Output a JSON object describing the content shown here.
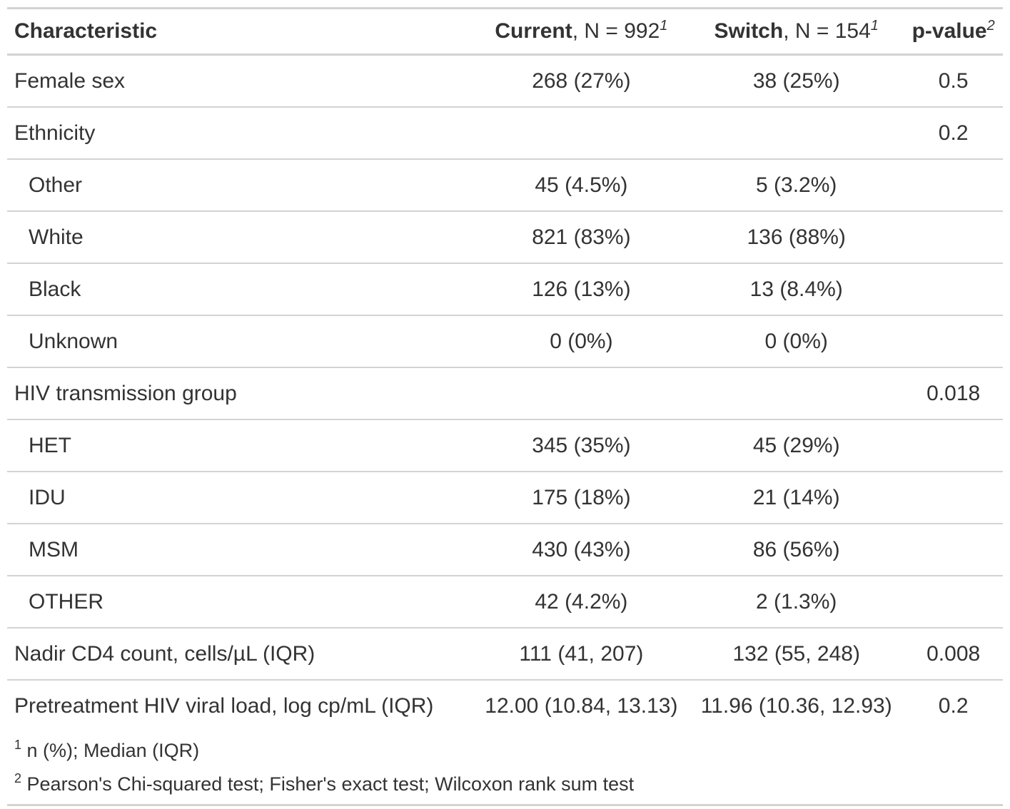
{
  "header": {
    "characteristic": "Characteristic",
    "current": {
      "bold": "Current",
      "rest": ", N = 992",
      "sup": "1"
    },
    "switch": {
      "bold": "Switch",
      "rest": ", N = 154",
      "sup": "1"
    },
    "pvalue": {
      "bold": "p-value",
      "sup": "2"
    }
  },
  "rows": [
    {
      "label": "Female sex",
      "current": "268 (27%)",
      "switch": "38 (25%)",
      "p": "0.5",
      "indent": false
    },
    {
      "label": "Ethnicity",
      "current": "",
      "switch": "",
      "p": "0.2",
      "indent": false
    },
    {
      "label": "Other",
      "current": "45 (4.5%)",
      "switch": "5 (3.2%)",
      "p": "",
      "indent": true
    },
    {
      "label": "White",
      "current": "821 (83%)",
      "switch": "136 (88%)",
      "p": "",
      "indent": true
    },
    {
      "label": "Black",
      "current": "126 (13%)",
      "switch": "13 (8.4%)",
      "p": "",
      "indent": true
    },
    {
      "label": "Unknown",
      "current": "0 (0%)",
      "switch": "0 (0%)",
      "p": "",
      "indent": true
    },
    {
      "label": "HIV transmission group",
      "current": "",
      "switch": "",
      "p": "0.018",
      "indent": false
    },
    {
      "label": "HET",
      "current": "345 (35%)",
      "switch": "45 (29%)",
      "p": "",
      "indent": true
    },
    {
      "label": "IDU",
      "current": "175 (18%)",
      "switch": "21 (14%)",
      "p": "",
      "indent": true
    },
    {
      "label": "MSM",
      "current": "430 (43%)",
      "switch": "86 (56%)",
      "p": "",
      "indent": true
    },
    {
      "label": "OTHER",
      "current": "42 (4.2%)",
      "switch": "2 (1.3%)",
      "p": "",
      "indent": true
    },
    {
      "label": "Nadir CD4 count, cells/µL (IQR)",
      "current": "111 (41, 207)",
      "switch": "132 (55, 248)",
      "p": "0.008",
      "indent": false
    },
    {
      "label": "Pretreatment HIV viral load, log cp/mL (IQR)",
      "current": "12.00 (10.84, 13.13)",
      "switch": "11.96 (10.36, 12.93)",
      "p": "0.2",
      "indent": false
    }
  ],
  "footnotes": [
    {
      "mark": "1",
      "text": "n (%); Median (IQR)"
    },
    {
      "mark": "2",
      "text": "Pearson's Chi-squared test; Fisher's exact test; Wilcoxon rank sum test"
    }
  ]
}
